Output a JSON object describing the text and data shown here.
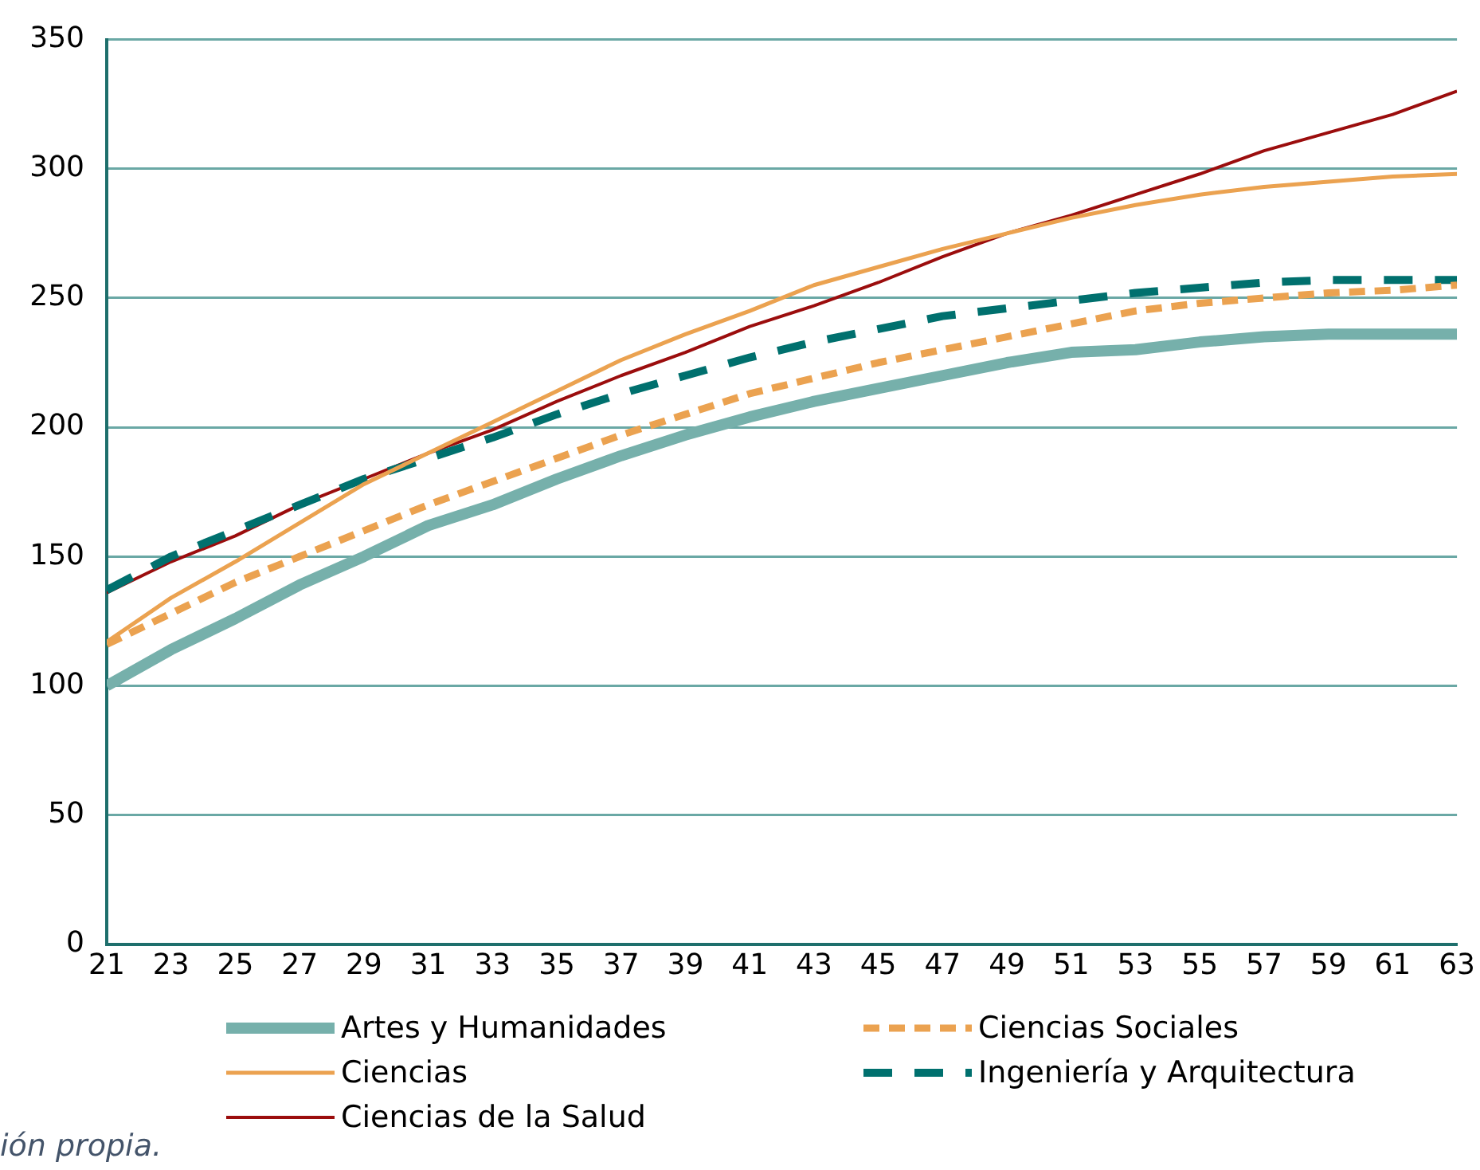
{
  "chart_data": {
    "type": "line",
    "x": [
      21,
      23,
      25,
      27,
      29,
      31,
      33,
      35,
      37,
      39,
      41,
      43,
      45,
      47,
      49,
      51,
      53,
      55,
      57,
      59,
      61,
      63
    ],
    "xlim": [
      21,
      63
    ],
    "xticks": [
      21,
      23,
      25,
      27,
      29,
      31,
      33,
      35,
      37,
      39,
      41,
      43,
      45,
      47,
      49,
      51,
      53,
      55,
      57,
      59,
      61,
      63
    ],
    "ylim": [
      0,
      350
    ],
    "yticks": [
      0,
      50,
      100,
      150,
      200,
      250,
      300,
      350
    ],
    "grid": "y",
    "legend": "bottom",
    "marker": "none",
    "annotations": [
      "ión propia."
    ],
    "series": [
      {
        "name": "Artes y Humanidades",
        "color": "#76b0ab",
        "line_style": "solid",
        "values": [
          100,
          114,
          126,
          139,
          150,
          162,
          170,
          180,
          189,
          197,
          204,
          210,
          215,
          220,
          225,
          229,
          230,
          233,
          235,
          236,
          236,
          236
        ]
      },
      {
        "name": "Ciencias Sociales",
        "color": "#eba250",
        "line_style": "dashed",
        "values": [
          116,
          128,
          140,
          150,
          160,
          170,
          179,
          188,
          197,
          205,
          213,
          219,
          225,
          230,
          235,
          240,
          245,
          248,
          250,
          252,
          253,
          255
        ]
      },
      {
        "name": "Ciencias",
        "color": "#eba250",
        "line_style": "solid",
        "values": [
          117,
          134,
          148,
          163,
          178,
          190,
          202,
          214,
          226,
          236,
          245,
          255,
          262,
          269,
          275,
          281,
          286,
          290,
          293,
          295,
          297,
          298
        ]
      },
      {
        "name": "Ingeniería y Arquitectura",
        "color": "#00706e",
        "line_style": "dashed",
        "values": [
          137,
          150,
          160,
          170,
          180,
          188,
          196,
          205,
          213,
          220,
          227,
          233,
          238,
          243,
          246,
          249,
          252,
          254,
          256,
          257,
          257,
          257
        ]
      },
      {
        "name": "Ciencias de la Salud",
        "color": "#9b0d0d",
        "line_style": "solid",
        "values": [
          136,
          148,
          158,
          170,
          180,
          190,
          199,
          210,
          220,
          229,
          239,
          247,
          256,
          266,
          275,
          282,
          290,
          298,
          307,
          314,
          321,
          330
        ]
      }
    ]
  }
}
